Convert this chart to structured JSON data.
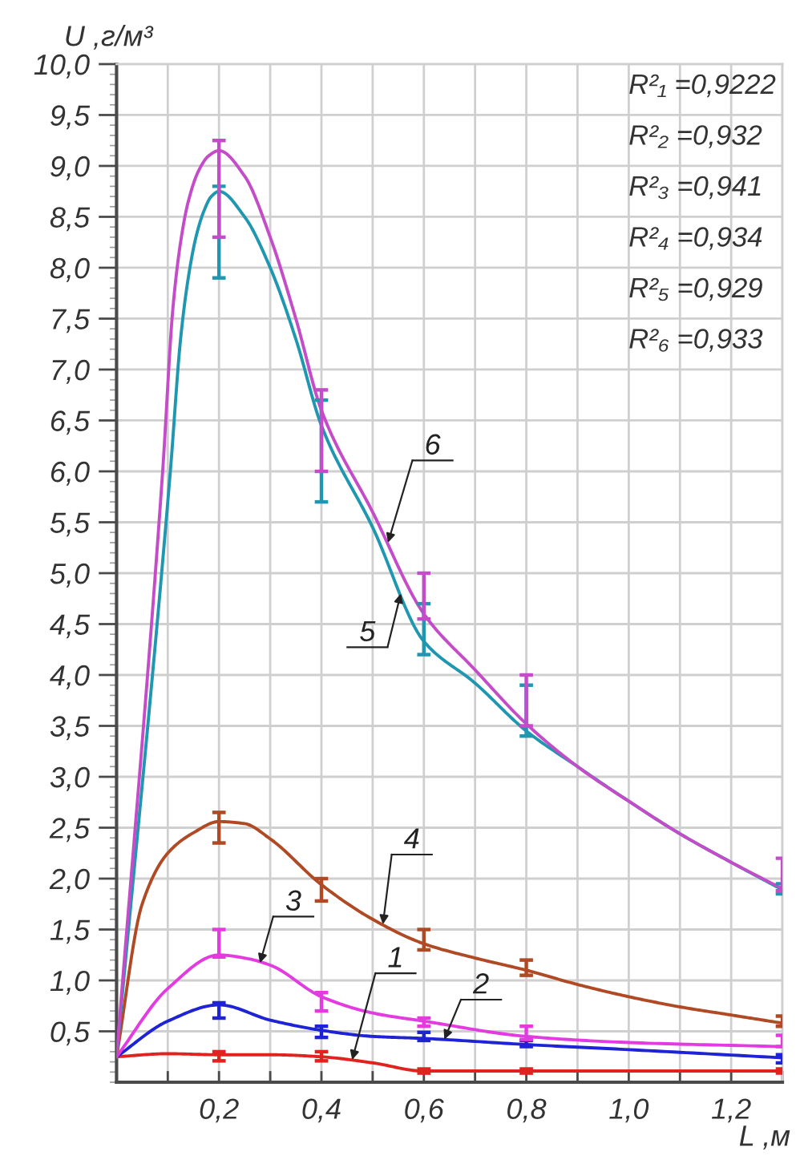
{
  "chart_data": {
    "type": "line",
    "xlabel": "L ,м",
    "ylabel": "U ,г/м³",
    "xlim": [
      0,
      1.3
    ],
    "ylim": [
      0,
      10
    ],
    "xticks": [
      {
        "value": 0.1,
        "label": null
      },
      {
        "value": 0.2,
        "label": "0,2"
      },
      {
        "value": 0.3,
        "label": null
      },
      {
        "value": 0.4,
        "label": "0,4"
      },
      {
        "value": 0.5,
        "label": null
      },
      {
        "value": 0.6,
        "label": "0,6"
      },
      {
        "value": 0.7,
        "label": null
      },
      {
        "value": 0.8,
        "label": "0,8"
      },
      {
        "value": 0.9,
        "label": null
      },
      {
        "value": 1.0,
        "label": "1,0"
      },
      {
        "value": 1.1,
        "label": null
      },
      {
        "value": 1.2,
        "label": "1,2"
      },
      {
        "value": 1.3,
        "label": null
      }
    ],
    "yticks": [
      {
        "value": 0.5,
        "label": "0,5"
      },
      {
        "value": 1.0,
        "label": "1,0"
      },
      {
        "value": 1.5,
        "label": "1,5"
      },
      {
        "value": 2.0,
        "label": "2,0"
      },
      {
        "value": 2.5,
        "label": "2,5"
      },
      {
        "value": 3.0,
        "label": "3,0"
      },
      {
        "value": 3.5,
        "label": "3,5"
      },
      {
        "value": 4.0,
        "label": "4,0"
      },
      {
        "value": 4.5,
        "label": "4,5"
      },
      {
        "value": 5.0,
        "label": "5,0"
      },
      {
        "value": 5.5,
        "label": "5,5"
      },
      {
        "value": 6.0,
        "label": "6,0"
      },
      {
        "value": 6.5,
        "label": "6,5"
      },
      {
        "value": 7.0,
        "label": "7,0"
      },
      {
        "value": 7.5,
        "label": "7,5"
      },
      {
        "value": 8.0,
        "label": "8,0"
      },
      {
        "value": 8.5,
        "label": "8,5"
      },
      {
        "value": 9.0,
        "label": "9,0"
      },
      {
        "value": 9.5,
        "label": "9,5"
      },
      {
        "value": 10.0,
        "label": "10,0"
      }
    ],
    "grid": true,
    "line_style": "solid",
    "series": [
      {
        "color": "#e0231f",
        "x": [
          0,
          0.1,
          0.2,
          0.3,
          0.4,
          0.5,
          0.6,
          0.8,
          1.0,
          1.3
        ],
        "values": [
          0.25,
          0.28,
          0.27,
          0.27,
          0.25,
          0.19,
          0.11,
          0.11,
          0.11,
          0.11
        ],
        "errors": [
          null,
          null,
          [
            0.21,
            0.3
          ],
          null,
          [
            0.21,
            0.3
          ],
          null,
          [
            0.09,
            0.13
          ],
          [
            0.09,
            0.13
          ],
          null,
          [
            0.09,
            0.13
          ]
        ]
      },
      {
        "color": "#1f23d6",
        "x": [
          0,
          0.1,
          0.2,
          0.3,
          0.4,
          0.5,
          0.6,
          0.8,
          1.0,
          1.3
        ],
        "values": [
          0.25,
          0.6,
          0.76,
          0.61,
          0.51,
          0.45,
          0.43,
          0.37,
          0.32,
          0.24
        ],
        "errors": [
          null,
          null,
          [
            0.63,
            0.78
          ],
          null,
          [
            0.44,
            0.55
          ],
          null,
          [
            0.41,
            0.49
          ],
          [
            0.35,
            0.41
          ],
          null,
          [
            0.19,
            0.27
          ]
        ]
      },
      {
        "color": "#e33be0",
        "x": [
          0,
          0.1,
          0.2,
          0.25,
          0.3,
          0.4,
          0.5,
          0.6,
          0.8,
          1.0,
          1.3
        ],
        "values": [
          0.25,
          0.92,
          1.25,
          1.22,
          1.15,
          0.84,
          0.68,
          0.6,
          0.45,
          0.39,
          0.35
        ],
        "errors": [
          null,
          null,
          [
            1.23,
            1.5
          ],
          null,
          null,
          [
            0.7,
            0.88
          ],
          null,
          [
            0.55,
            0.63
          ],
          [
            0.42,
            0.55
          ],
          null,
          [
            0.35,
            0.46
          ]
        ]
      },
      {
        "color": "#b04a24",
        "x": [
          0,
          0.05,
          0.1,
          0.15,
          0.2,
          0.25,
          0.3,
          0.4,
          0.5,
          0.6,
          0.7,
          0.8,
          0.9,
          1.0,
          1.1,
          1.2,
          1.3
        ],
        "values": [
          0.25,
          1.75,
          2.25,
          2.45,
          2.56,
          2.54,
          2.39,
          1.94,
          1.6,
          1.36,
          1.22,
          1.1,
          0.96,
          0.84,
          0.74,
          0.66,
          0.58
        ],
        "errors": [
          null,
          null,
          null,
          null,
          [
            2.35,
            2.65
          ],
          null,
          null,
          [
            1.78,
            2.0
          ],
          null,
          [
            1.3,
            1.5
          ],
          null,
          [
            1.05,
            1.2
          ],
          null,
          null,
          null,
          null,
          [
            0.55,
            0.65
          ]
        ]
      },
      {
        "color": "#1f97b0",
        "x": [
          0,
          0.105,
          0.125,
          0.14,
          0.155,
          0.17,
          0.185,
          0.2,
          0.25,
          0.3,
          0.35,
          0.4,
          0.5,
          0.6,
          0.7,
          0.8,
          0.9,
          1.0,
          1.1,
          1.2,
          1.3
        ],
        "values": [
          0.25,
          6.0,
          7.3,
          7.9,
          8.3,
          8.55,
          8.7,
          8.75,
          8.5,
          8.0,
          7.3,
          6.45,
          5.45,
          4.33,
          3.92,
          3.45,
          3.1,
          2.76,
          2.44,
          2.16,
          1.89
        ],
        "errors": [
          null,
          null,
          null,
          null,
          null,
          null,
          null,
          [
            7.9,
            8.8
          ],
          null,
          null,
          null,
          [
            5.7,
            6.7
          ],
          null,
          [
            4.2,
            4.7
          ],
          null,
          [
            3.4,
            3.9
          ],
          null,
          null,
          null,
          null,
          [
            1.85,
            1.95
          ]
        ]
      },
      {
        "color": "#c44cc8",
        "x": [
          0,
          0.09,
          0.11,
          0.125,
          0.14,
          0.16,
          0.18,
          0.2,
          0.25,
          0.3,
          0.35,
          0.4,
          0.5,
          0.6,
          0.7,
          0.8,
          0.9,
          1.0,
          1.1,
          1.2,
          1.3
        ],
        "values": [
          0.25,
          6.0,
          7.6,
          8.25,
          8.65,
          8.95,
          9.1,
          9.15,
          8.9,
          8.3,
          7.5,
          6.6,
          5.6,
          4.6,
          4.05,
          3.52,
          3.1,
          2.76,
          2.44,
          2.16,
          1.9
        ],
        "errors": [
          null,
          null,
          null,
          null,
          null,
          null,
          null,
          [
            8.3,
            9.25
          ],
          null,
          null,
          null,
          [
            6.0,
            6.8
          ],
          null,
          [
            4.55,
            5.0
          ],
          null,
          [
            3.5,
            4.0
          ],
          null,
          null,
          null,
          null,
          [
            1.88,
            2.2
          ]
        ]
      }
    ],
    "annotations": [
      {
        "text": "1",
        "x": 0.46,
        "y": 0.22
      },
      {
        "text": "2",
        "x": 0.64,
        "y": 0.42
      },
      {
        "text": "3",
        "x": 0.28,
        "y": 1.17
      },
      {
        "text": "4",
        "x": 0.52,
        "y": 1.55
      },
      {
        "text": "5",
        "x": 0.555,
        "y": 4.8
      },
      {
        "text": "6",
        "x": 0.53,
        "y": 5.3
      },
      "R²₁ =0,9222",
      "R²₂ =0,932",
      "R²₃ =0,941",
      "R²₄ =0,934",
      "R²₅ =0,929",
      "R²₆ =0,933"
    ]
  }
}
